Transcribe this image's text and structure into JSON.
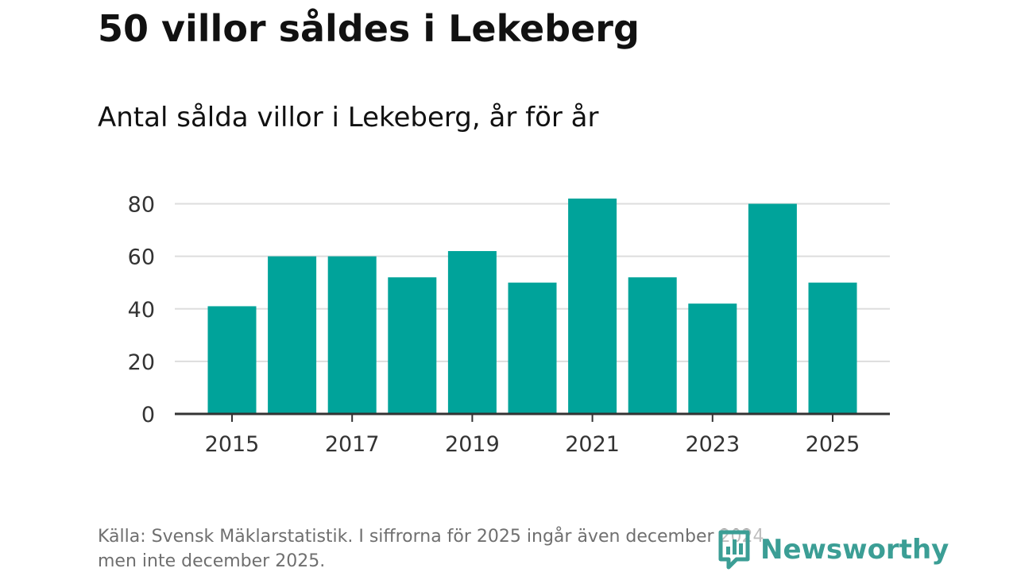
{
  "title": "50 villor såldes i Lekeberg",
  "subtitle": "Antal sålda villor i Lekeberg, år för år",
  "footer": {
    "line1": "Källa: Svensk Mäklarstatistik. I siffrorna för 2025 ingår även december 2024,",
    "line2": "men inte december 2025."
  },
  "brand": {
    "name": "Newsworthy",
    "icon": "newsworthy-logo-icon",
    "color": "#3b9e95"
  },
  "colors": {
    "bar": "#00a39a",
    "grid": "#dddddd",
    "axis": "#333333",
    "text": "#111111",
    "tick_text": "#333333"
  },
  "chart_data": {
    "type": "bar",
    "title": "Antal sålda villor i Lekeberg, år för år",
    "xlabel": "",
    "ylabel": "",
    "categories": [
      2015,
      2016,
      2017,
      2018,
      2019,
      2020,
      2021,
      2022,
      2023,
      2024,
      2025
    ],
    "values": [
      41,
      60,
      60,
      52,
      62,
      50,
      82,
      52,
      42,
      80,
      50
    ],
    "x_tick_labels": [
      "2015",
      "2017",
      "2019",
      "2021",
      "2023",
      "2025"
    ],
    "y_ticks": [
      0,
      20,
      40,
      60,
      80
    ],
    "y_tick_labels": [
      "0",
      "20",
      "40",
      "60",
      "80"
    ],
    "ylim": [
      0,
      85
    ],
    "grid": true,
    "legend": "none"
  }
}
